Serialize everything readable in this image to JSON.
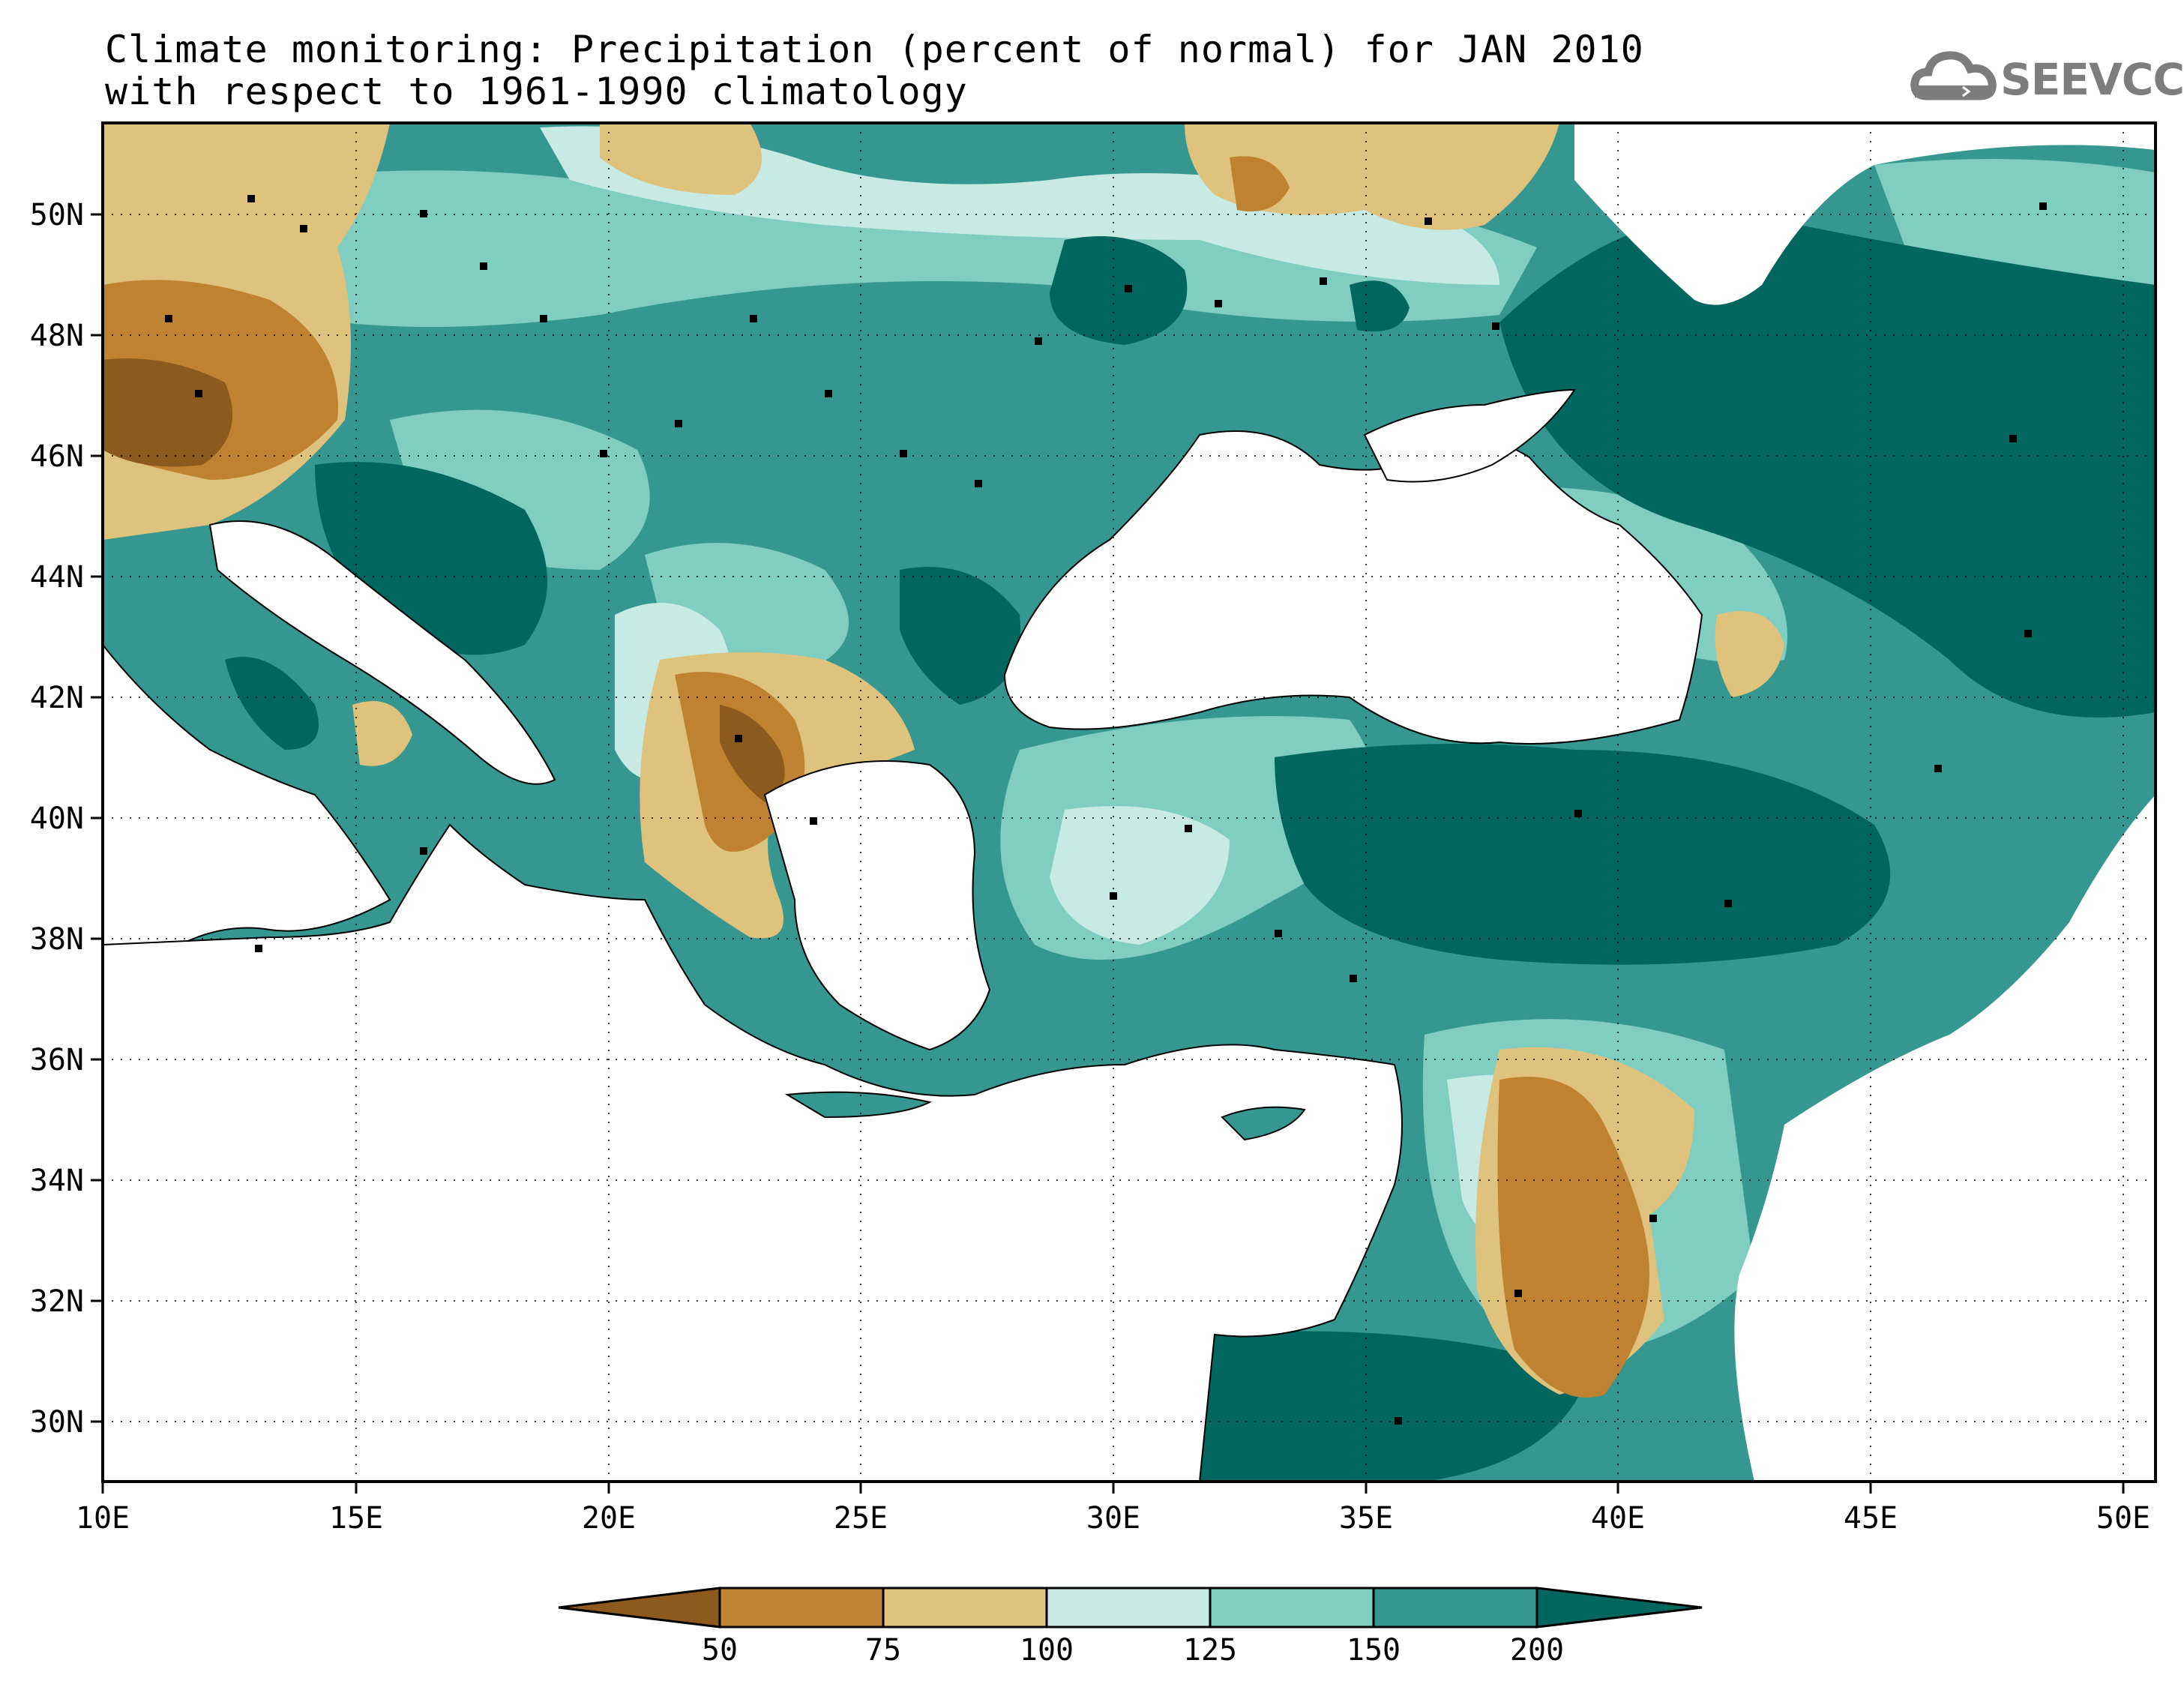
{
  "title": {
    "line1": "Climate monitoring: Precipitation (percent of normal) for JAN 2010",
    "line2": "with respect to 1961-1990 climatology"
  },
  "logo": {
    "text": "SEEVCCC",
    "icon": "cloud-icon",
    "color": "#7d7d7d"
  },
  "map": {
    "lon_range": [
      10,
      51
    ],
    "lat_range": [
      29,
      51.5
    ],
    "lon_ticks": [
      "10E",
      "15E",
      "20E",
      "25E",
      "30E",
      "35E",
      "40E",
      "45E",
      "50E"
    ],
    "lat_ticks": [
      "30N",
      "32N",
      "34N",
      "36N",
      "38N",
      "40N",
      "42N",
      "44N",
      "46N",
      "48N",
      "50N"
    ],
    "grid": "dotted"
  },
  "colorbar": {
    "labels": [
      "50",
      "75",
      "100",
      "125",
      "150",
      "200"
    ],
    "colors": [
      "#8c5a1c",
      "#bf8232",
      "#dfc27c",
      "#c7eae5",
      "#80cdc1",
      "#35978f",
      "#01665e"
    ]
  }
}
